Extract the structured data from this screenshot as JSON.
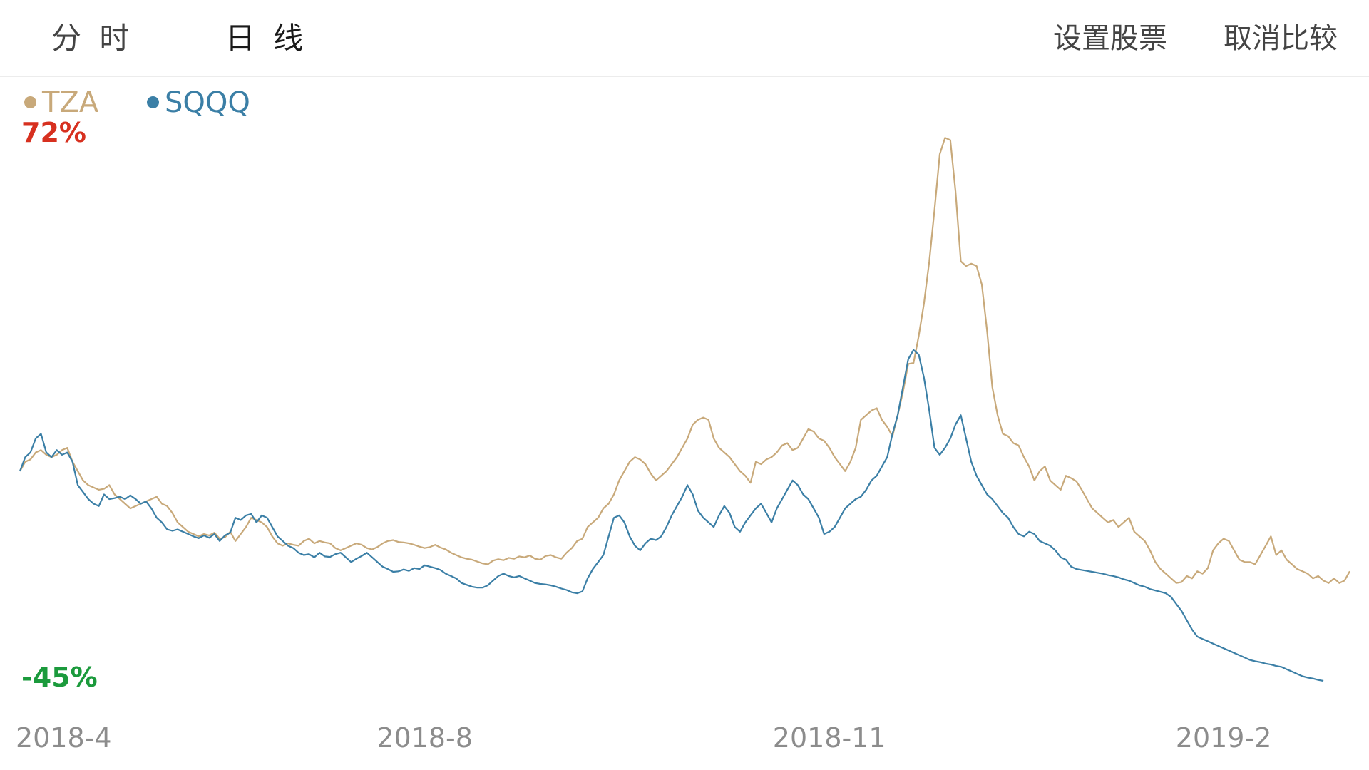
{
  "tabs": [
    {
      "label": "分 时"
    },
    {
      "label": "日 线",
      "active": true
    }
  ],
  "actions": {
    "set_stocks": "设置股票",
    "cancel_compare": "取消比较"
  },
  "colors": {
    "TZA": "#c8a97a",
    "SQQQ": "#3b7fa6",
    "max_label": "#d7301f",
    "min_label": "#1b9a3c",
    "axis_text": "#8c8c8c"
  },
  "chart_data": {
    "type": "line",
    "title": "",
    "xlabel": "",
    "ylabel": "",
    "ylim": [
      -45,
      72
    ],
    "y_max_label": "72%",
    "y_min_label": "-45%",
    "x_ticks": [
      {
        "label": "2018-4",
        "index": 0
      },
      {
        "label": "2018-8",
        "index": 77
      },
      {
        "label": "2018-11",
        "index": 154
      },
      {
        "label": "2019-2",
        "index": 229
      }
    ],
    "legend_position": "top-left",
    "series": [
      {
        "name": "TZA",
        "values": [
          0,
          2,
          2.5,
          4,
          4.5,
          3.5,
          3,
          3.5,
          4.5,
          5,
          2,
          0,
          -2,
          -3,
          -3.5,
          -4,
          -3.8,
          -3,
          -5,
          -6,
          -7,
          -8,
          -7.5,
          -7,
          -6.5,
          -6,
          -5.5,
          -7,
          -7.5,
          -9,
          -11,
          -12,
          -13,
          -13.5,
          -14,
          -13.5,
          -13.8,
          -13.2,
          -14.5,
          -14.2,
          -13,
          -15,
          -13.5,
          -12,
          -10,
          -10.5,
          -11,
          -12,
          -14,
          -15.5,
          -16,
          -15.5,
          -15.8,
          -16,
          -15,
          -14.5,
          -15.5,
          -15,
          -15.3,
          -15.5,
          -16.5,
          -17,
          -16.5,
          -16,
          -15.5,
          -15.8,
          -16.5,
          -16.8,
          -16.3,
          -15.5,
          -15,
          -14.8,
          -15.2,
          -15.3,
          -15.5,
          -15.8,
          -16.2,
          -16.5,
          -16.3,
          -15.8,
          -16.4,
          -16.8,
          -17.5,
          -18,
          -18.5,
          -18.8,
          -19,
          -19.4,
          -19.8,
          -20,
          -19.2,
          -18.9,
          -19.1,
          -18.6,
          -18.8,
          -18.3,
          -18.5,
          -18.1,
          -18.8,
          -19,
          -18.2,
          -18,
          -18.5,
          -18.8,
          -17.5,
          -16.5,
          -15,
          -14.5,
          -12,
          -11,
          -10,
          -8,
          -7,
          -5,
          -2,
          0,
          2,
          3,
          2.5,
          1.5,
          -0.5,
          -2,
          -1,
          0,
          1.5,
          3,
          5,
          7,
          10,
          11,
          11.5,
          11,
          7,
          5,
          4,
          3,
          1.5,
          0,
          -1,
          -2.5,
          2,
          1.5,
          2.5,
          3,
          4,
          5.5,
          6,
          4.5,
          5,
          7,
          9,
          8.5,
          7,
          6.5,
          5,
          3,
          1.5,
          0,
          2,
          5,
          11,
          12,
          13,
          13.5,
          11,
          9.5,
          7.5,
          12,
          17,
          23,
          23.2,
          29,
          36,
          45,
          56,
          68,
          71.5,
          71,
          60,
          45,
          44,
          44.5,
          44,
          40,
          30,
          18,
          12,
          8,
          7.5,
          6,
          5.5,
          3,
          1,
          -2,
          0,
          1,
          -2,
          -3,
          -4,
          -1,
          -1.5,
          -2.2,
          -4,
          -6,
          -8,
          -9,
          -10,
          -11,
          -10.5,
          -12,
          -11,
          -10,
          -13,
          -14,
          -15,
          -17,
          -19.5,
          -21,
          -22,
          -23,
          -24,
          -23.8,
          -22.5,
          -23,
          -21.5,
          -22,
          -20.8,
          -17,
          -15.5,
          -14.5,
          -15,
          -17,
          -19,
          -19.5,
          -19.5,
          -20,
          -18,
          -16,
          -14,
          -18,
          -17,
          -19,
          -20,
          -21,
          -21.5,
          -22,
          -23,
          -22.5,
          -23.5,
          -24,
          -23,
          -24,
          -23.5,
          -21.5
        ]
      },
      {
        "name": "SQQQ",
        "values": [
          0,
          3,
          4,
          7,
          8,
          4,
          3,
          4.5,
          3.5,
          4,
          2,
          -3,
          -4.5,
          -6,
          -7,
          -7.5,
          -5,
          -6,
          -5.8,
          -5.5,
          -6,
          -5.2,
          -6,
          -7,
          -6.5,
          -8,
          -10,
          -11,
          -12.5,
          -12.8,
          -12.5,
          -13,
          -13.5,
          -14,
          -14.4,
          -13.8,
          -14.3,
          -13.5,
          -15,
          -13.8,
          -13.2,
          -10,
          -10.5,
          -9.5,
          -9.2,
          -11,
          -9.5,
          -10,
          -12,
          -14,
          -15,
          -16,
          -16.5,
          -17.5,
          -18,
          -17.8,
          -18.5,
          -17.5,
          -18.3,
          -18.4,
          -17.8,
          -17.5,
          -18.5,
          -19.5,
          -18.8,
          -18.2,
          -17.5,
          -18.5,
          -19.5,
          -20.5,
          -21,
          -21.6,
          -21.5,
          -21.1,
          -21.4,
          -20.8,
          -21,
          -20.2,
          -20.5,
          -20.8,
          -21.2,
          -22,
          -22.5,
          -23,
          -24,
          -24.4,
          -24.8,
          -25,
          -25,
          -24.5,
          -23.5,
          -22.5,
          -22,
          -22.5,
          -22.8,
          -22.5,
          -23,
          -23.5,
          -24,
          -24.2,
          -24.3,
          -24.5,
          -24.8,
          -25.2,
          -25.5,
          -26,
          -26.2,
          -25.8,
          -23,
          -21,
          -19.5,
          -18,
          -14,
          -10,
          -9.5,
          -11,
          -14,
          -16,
          -17,
          -15.5,
          -14.5,
          -14.8,
          -14,
          -12,
          -9.5,
          -7.5,
          -5.5,
          -3,
          -5,
          -8.5,
          -10,
          -11,
          -12,
          -9.5,
          -7.5,
          -9,
          -12,
          -13,
          -11,
          -9.5,
          -8,
          -7,
          -9,
          -11,
          -8,
          -6,
          -4,
          -2,
          -3,
          -5,
          -6,
          -8,
          -10,
          -13.5,
          -13,
          -12,
          -10,
          -8,
          -7,
          -6,
          -5.5,
          -4,
          -2,
          -1,
          1,
          3,
          8,
          12,
          18,
          24,
          26,
          25,
          20,
          13,
          5,
          3.5,
          5,
          7,
          10,
          12,
          7,
          2,
          -1,
          -3,
          -5,
          -6,
          -7.5,
          -9,
          -10,
          -12,
          -13.5,
          -14,
          -13,
          -13.5,
          -15,
          -15.5,
          -16,
          -17,
          -18.5,
          -19,
          -20.5,
          -21,
          -21.2,
          -21.4,
          -21.6,
          -21.8,
          -22,
          -22.3,
          -22.5,
          -22.8,
          -23.2,
          -23.5,
          -24,
          -24.5,
          -24.8,
          -25.3,
          -25.6,
          -25.9,
          -26.2,
          -27,
          -28.5,
          -30,
          -32,
          -34,
          -35.5,
          -36,
          -36.5,
          -37,
          -37.5,
          -38,
          -38.5,
          -39,
          -39.5,
          -40,
          -40.5,
          -40.8,
          -41,
          -41.3,
          -41.5,
          -41.8,
          -42,
          -42.5,
          -43,
          -43.5,
          -44,
          -44.3,
          -44.5,
          -44.8,
          -45
        ]
      }
    ]
  }
}
